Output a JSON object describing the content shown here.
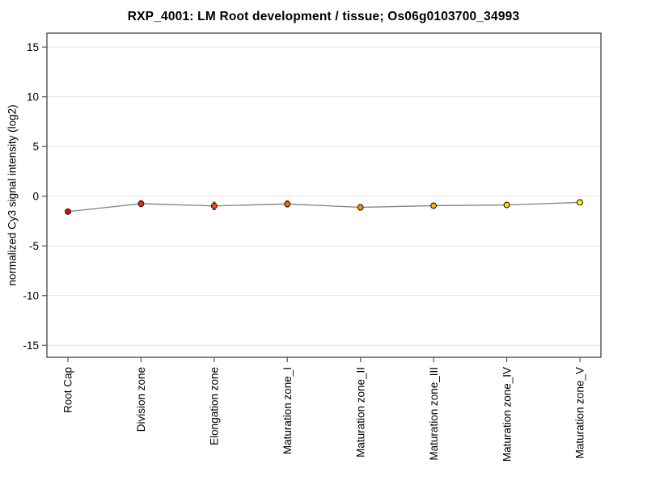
{
  "figure": {
    "background": "#ffffff"
  },
  "chart_data": {
    "type": "line",
    "title": "RXP_4001: LM Root development / tissue; Os06g0103700_34993",
    "xlabel": "",
    "ylabel": "normalized Cy3 signal intensity (log2)",
    "categories": [
      "Root Cap",
      "Division zone",
      "Elongation zone",
      "Maturation zone_I",
      "Maturation zone_II",
      "Maturation zone_III",
      "Maturation zone_IV",
      "Maturation zone_V"
    ],
    "series": [
      {
        "name": "normalized Cy3 signal intensity (log2)",
        "values": [
          -1.55,
          -0.75,
          -0.98,
          -0.78,
          -1.12,
          -0.95,
          -0.88,
          -0.62
        ],
        "errors": [
          0.2,
          0.3,
          0.38,
          0.3,
          0.28,
          0.22,
          0.18,
          0.18
        ],
        "point_colors": [
          "#FF0000",
          "#FF2400",
          "#FF4900",
          "#FF6D00",
          "#FF9200",
          "#FFB600",
          "#FFDB00",
          "#FFFF00"
        ]
      }
    ],
    "ylim": [
      -16.2,
      16.4
    ],
    "yticks": [
      15,
      10,
      5,
      0,
      -5,
      -10,
      -15
    ],
    "grid": true,
    "legend": false,
    "line_color": "#808080",
    "marker_outline": "#1a1a1a",
    "error_bar_color": "#222222",
    "gridline_color": "#e4e4e4",
    "axis_color": "#333333",
    "tick_color": "#555555"
  }
}
